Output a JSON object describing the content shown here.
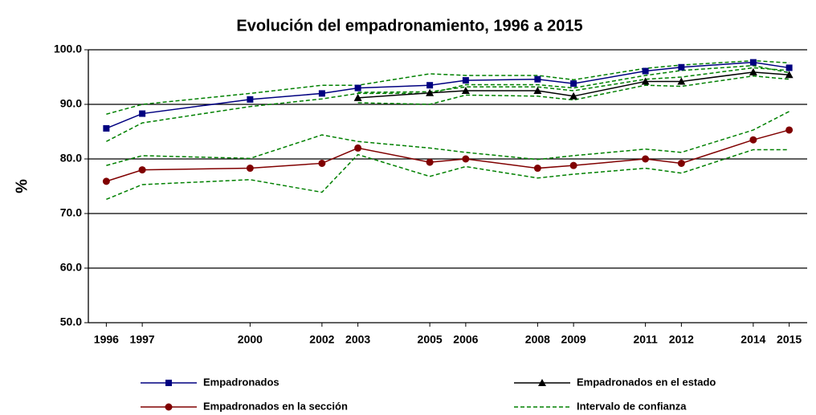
{
  "chart_data": {
    "type": "line",
    "title": "Evolución del empadronamiento, 1996 a 2015",
    "y_label": "%",
    "x": [
      1996,
      1997,
      2000,
      2002,
      2003,
      2005,
      2006,
      2008,
      2009,
      2011,
      2012,
      2014,
      2015
    ],
    "xlim": [
      1995.5,
      2015.5
    ],
    "xticks": [
      1996,
      1997,
      2000,
      2002,
      2003,
      2005,
      2006,
      2008,
      2009,
      2011,
      2012,
      2014,
      2015
    ],
    "ylim": [
      50,
      100
    ],
    "yticks": [
      {
        "value": 50,
        "label": "50.0"
      },
      {
        "value": 60,
        "label": "60.0"
      },
      {
        "value": 70,
        "label": "70.0"
      },
      {
        "value": 80,
        "label": "80.0"
      },
      {
        "value": 90,
        "label": "90.0"
      },
      {
        "value": 100,
        "label": "100.0"
      }
    ],
    "grid": true,
    "series": [
      {
        "name": "Empadronados",
        "color": "#000080",
        "marker": "square",
        "values": [
          85.6,
          88.3,
          90.9,
          92.0,
          93.0,
          93.5,
          94.4,
          94.6,
          93.8,
          96.1,
          96.8,
          97.7,
          96.7
        ]
      },
      {
        "name": "Empadronados en el estado",
        "color": "#000000",
        "marker": "triangle",
        "values": [
          null,
          null,
          null,
          null,
          91.2,
          92.1,
          92.5,
          92.5,
          91.5,
          94.2,
          94.2,
          95.9,
          95.4
        ]
      },
      {
        "name": "Empadronados en la sección",
        "color": "#800000",
        "marker": "circle",
        "values": [
          75.9,
          78.0,
          78.3,
          79.2,
          82.0,
          79.4,
          80.0,
          78.3,
          78.8,
          80.0,
          79.2,
          83.5,
          85.3
        ]
      }
    ],
    "confidence_interval": {
      "name": "Intervalo de confianza",
      "color": "#008000",
      "bands": [
        {
          "upper": [
            88.2,
            90.0,
            92.0,
            93.5,
            93.5,
            95.6,
            95.3,
            95.3,
            94.5,
            96.6,
            97.2,
            98.0,
            97.6
          ],
          "lower": [
            83.2,
            86.6,
            89.6,
            91.0,
            92.0,
            92.0,
            93.6,
            93.6,
            93.0,
            95.3,
            96.2,
            97.1,
            95.8
          ]
        },
        {
          "upper": [
            null,
            null,
            null,
            null,
            92.2,
            92.3,
            93.2,
            93.2,
            92.5,
            94.6,
            95.0,
            96.7,
            96.2
          ],
          "lower": [
            null,
            null,
            null,
            null,
            90.3,
            90.0,
            91.7,
            91.5,
            90.8,
            93.5,
            93.3,
            95.2,
            94.6
          ]
        },
        {
          "upper": [
            78.8,
            80.6,
            80.1,
            84.4,
            83.2,
            82.0,
            81.2,
            79.9,
            80.6,
            81.8,
            81.2,
            85.3,
            88.7
          ],
          "lower": [
            72.6,
            75.3,
            76.2,
            73.9,
            80.8,
            76.8,
            78.6,
            76.5,
            77.2,
            78.3,
            77.4,
            81.7,
            81.7
          ]
        }
      ]
    }
  }
}
